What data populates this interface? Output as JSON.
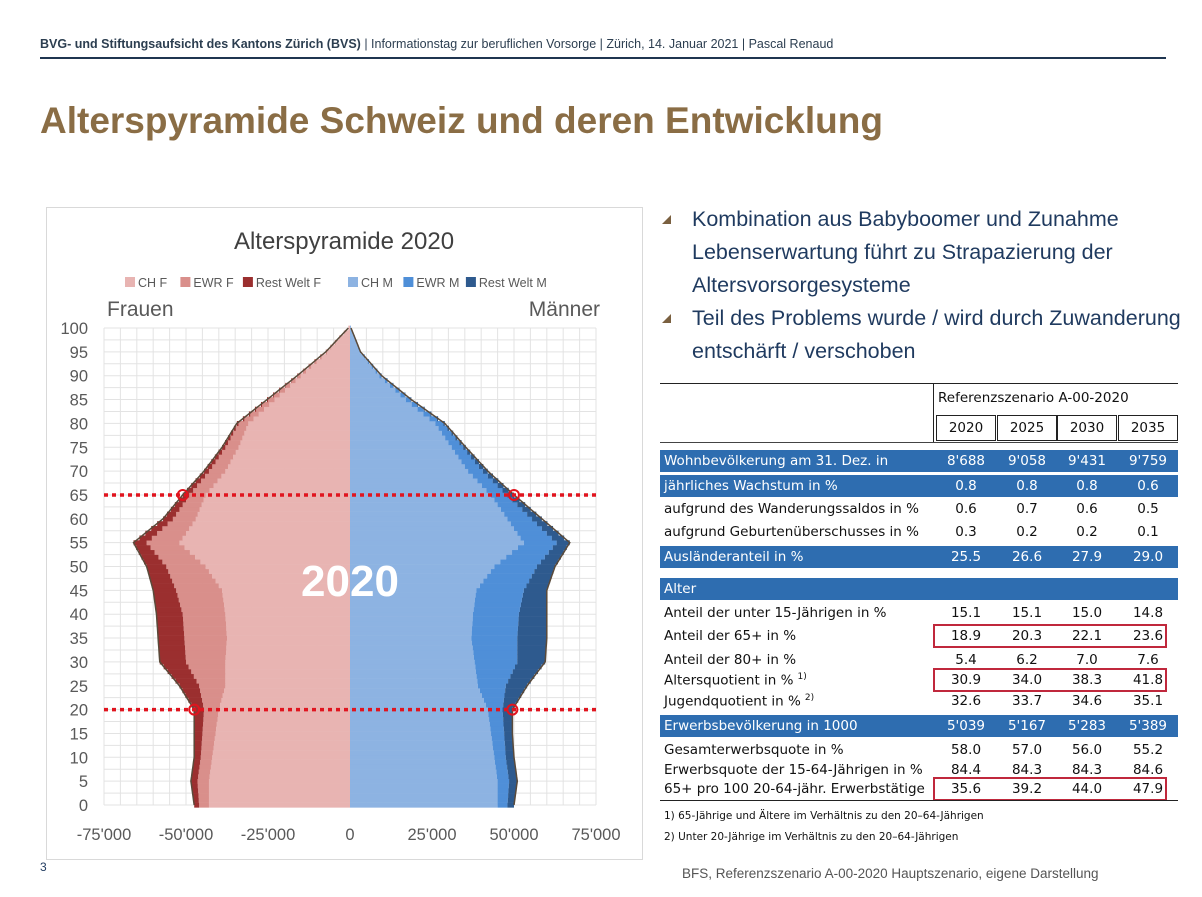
{
  "header": {
    "org": "BVG- und Stiftungsaufsicht des Kantons Zürich (BVS)",
    "rest": " | Informationstag zur beruflichen Vorsorge | Zürich, 14. Januar 2021 | Pascal Renaud"
  },
  "title": "Alterspyramide Schweiz und deren Entwicklung",
  "page_number": "3",
  "source": "BFS, Referenzszenario A-00-2020 Hauptszenario, eigene Darstellung",
  "bullets": [
    "Kombination aus Babyboomer und Zunahme Lebenserwartung führt zu Strapazierung der Altersvorsorgesysteme",
    "Teil des Problems wurde / wird durch Zuwanderung entschärft / verschoben"
  ],
  "chart_data": {
    "type": "bar",
    "orientation": "horizontal-population-pyramid",
    "title": "Alterspyramide 2020",
    "left_label": "Frauen",
    "right_label": "Männer",
    "overlay_year": "2020",
    "legend": [
      {
        "name": "CH F",
        "color": "#e8b4b2"
      },
      {
        "name": "EWR F",
        "color": "#d98f8b"
      },
      {
        "name": "Rest Welt F",
        "color": "#9b2f2f"
      },
      {
        "name": "CH M",
        "color": "#8db3e2"
      },
      {
        "name": "EWR M",
        "color": "#4f8fd8"
      },
      {
        "name": "Rest Welt M",
        "color": "#2e5a8e"
      }
    ],
    "y_ticks": [
      "100",
      "95",
      "90",
      "85",
      "80",
      "75",
      "70",
      "65",
      "60",
      "55",
      "50",
      "45",
      "40",
      "35",
      "30",
      "25",
      "20",
      "15",
      "10",
      "5",
      "0"
    ],
    "x_ticks": [
      "-75'000",
      "-50'000",
      "-25'000",
      "0",
      "25'000",
      "50'000",
      "75'000"
    ],
    "xlim": [
      -75000,
      75000
    ],
    "ylim": [
      0,
      100
    ],
    "marked_ages": [
      65,
      20
    ],
    "ages": [
      0,
      5,
      10,
      15,
      20,
      25,
      30,
      35,
      40,
      45,
      50,
      55,
      60,
      65,
      70,
      75,
      80,
      85,
      90,
      95,
      100
    ],
    "series": [
      {
        "name": "CH F",
        "values": [
          43000,
          43000,
          42000,
          41000,
          40000,
          38000,
          38000,
          37500,
          38000,
          39000,
          44000,
          52000,
          47000,
          44000,
          38000,
          34000,
          31000,
          23000,
          15000,
          7000,
          500
        ]
      },
      {
        "name": "EWR F",
        "values": [
          3000,
          3500,
          3500,
          4000,
          4500,
          8000,
          12000,
          13000,
          13000,
          14000,
          12000,
          10000,
          7000,
          5000,
          5000,
          4000,
          3000,
          2000,
          1000,
          400,
          0
        ]
      },
      {
        "name": "Rest Welt F",
        "values": [
          1500,
          2000,
          2000,
          2500,
          3000,
          6000,
          8000,
          8000,
          8000,
          7000,
          6000,
          4000,
          3000,
          2000,
          1500,
          1000,
          500,
          300,
          100,
          0,
          0
        ]
      },
      {
        "name": "CH M",
        "values": [
          45000,
          45000,
          44000,
          43000,
          42000,
          39000,
          38000,
          37000,
          37500,
          38500,
          44000,
          53000,
          48000,
          43000,
          36000,
          31000,
          26000,
          17000,
          9000,
          3000,
          300
        ]
      },
      {
        "name": "EWR M",
        "values": [
          3000,
          3500,
          3500,
          4000,
          4500,
          8500,
          13000,
          14000,
          14000,
          14500,
          13000,
          10000,
          7500,
          5000,
          4500,
          3500,
          2500,
          1500,
          600,
          200,
          0
        ]
      },
      {
        "name": "Rest Welt M",
        "values": [
          2000,
          2500,
          2500,
          2500,
          3000,
          6500,
          8500,
          9000,
          8500,
          7000,
          5500,
          4000,
          3000,
          2000,
          1500,
          800,
          400,
          200,
          50,
          0,
          0
        ]
      }
    ]
  },
  "table": {
    "scenario": "Referenzszenario A-00-2020",
    "years": [
      "2020",
      "2025",
      "2030",
      "2035"
    ],
    "rows": [
      {
        "label": "Wohnbevölkerung  am 31. Dez. in",
        "values": [
          "8'688",
          "9'058",
          "9'431",
          "9'759"
        ],
        "style": "bar"
      },
      {
        "label": "jährliches Wachstum in %",
        "values": [
          "0.8",
          "0.8",
          "0.8",
          "0.6"
        ],
        "style": "bar"
      },
      {
        "label": "aufgrund des Wanderungssaldos in %",
        "values": [
          "0.6",
          "0.7",
          "0.6",
          "0.5"
        ],
        "style": "plain"
      },
      {
        "label": "aufgrund Geburtenüberschusses in %",
        "values": [
          "0.3",
          "0.2",
          "0.2",
          "0.1"
        ],
        "style": "plain"
      },
      {
        "label": "Ausländeranteil in %",
        "values": [
          "25.5",
          "26.6",
          "27.9",
          "29.0"
        ],
        "style": "bar"
      },
      {
        "label": "Alter",
        "values": [
          "",
          "",
          "",
          ""
        ],
        "style": "bar"
      },
      {
        "label": "Anteil der unter 15-Jährigen in %",
        "values": [
          "15.1",
          "15.1",
          "15.0",
          "14.8"
        ],
        "style": "plain"
      },
      {
        "label": "Anteil der 65+ in %",
        "values": [
          "18.9",
          "20.3",
          "22.1",
          "23.6"
        ],
        "style": "boxed"
      },
      {
        "label": "Anteil der 80+ in %",
        "values": [
          "5.4",
          "6.2",
          "7.0",
          "7.6"
        ],
        "style": "plain"
      },
      {
        "label": "Altersquotient in %",
        "sup": "1)",
        "values": [
          "30.9",
          "34.0",
          "38.3",
          "41.8"
        ],
        "style": "boxed"
      },
      {
        "label": "Jugendquotient in %",
        "sup": "2)",
        "values": [
          "32.6",
          "33.7",
          "34.6",
          "35.1"
        ],
        "style": "plain"
      },
      {
        "label": "Erwerbsbevölkerung in 1000",
        "values": [
          "5'039",
          "5'167",
          "5'283",
          "5'389"
        ],
        "style": "bar"
      },
      {
        "label": "Gesamterwerbsquote in %",
        "values": [
          "58.0",
          "57.0",
          "56.0",
          "55.2"
        ],
        "style": "plain"
      },
      {
        "label": "Erwerbsquote der 15-64-Jährigen in %",
        "values": [
          "84.4",
          "84.3",
          "84.3",
          "84.6"
        ],
        "style": "plain"
      },
      {
        "label": "65+ pro 100 20-64-jähr. Erwerbstätige",
        "values": [
          "35.6",
          "39.2",
          "44.0",
          "47.9"
        ],
        "style": "boxed"
      }
    ],
    "footnotes": [
      "1) 65-Jährige und Ältere im Verhältnis zu den 20–64-Jährigen",
      "2)  Unter 20-Jährige im Verhältnis zu den 20–64-Jährigen"
    ]
  }
}
